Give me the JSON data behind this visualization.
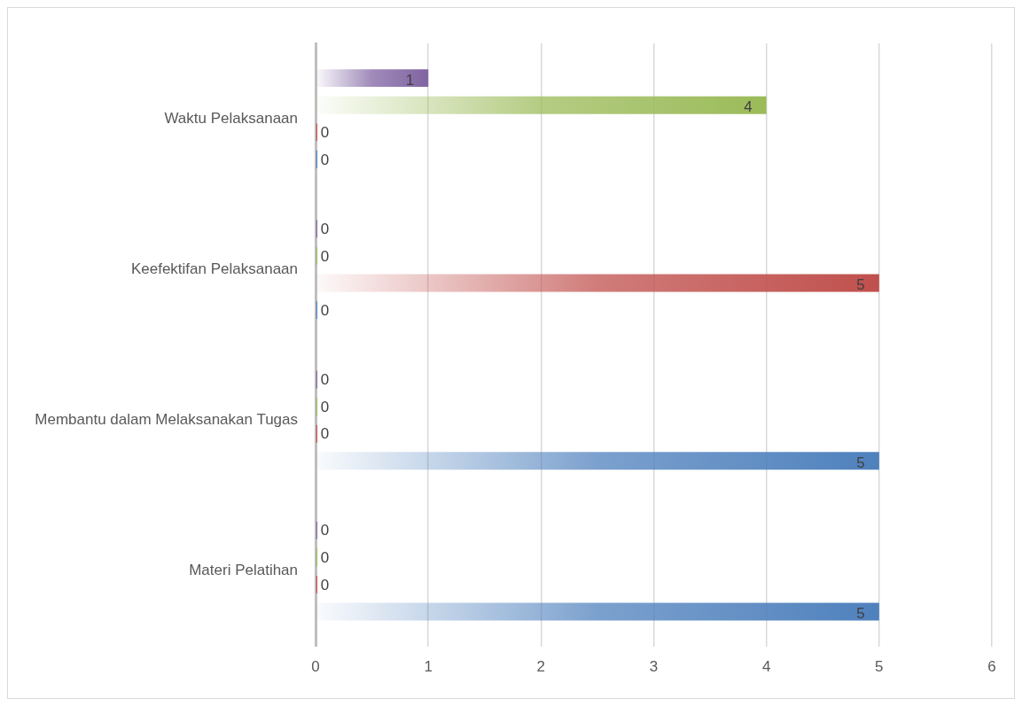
{
  "chart_data": {
    "type": "bar",
    "orientation": "horizontal",
    "categories": [
      "Waktu Pelaksanaan",
      "Keefektifan Pelaksanaan",
      "Membantu dalam Melaksanakan Tugas",
      "Materi Pelatihan"
    ],
    "series": [
      {
        "color": "#8064a2",
        "values": [
          1,
          0,
          0,
          0
        ]
      },
      {
        "color": "#9bbb59",
        "values": [
          4,
          0,
          0,
          0
        ]
      },
      {
        "color": "#c0504d",
        "values": [
          0,
          5,
          0,
          0
        ]
      },
      {
        "color": "#4f81bd",
        "values": [
          0,
          0,
          5,
          5
        ]
      }
    ],
    "xlim": [
      0,
      6
    ],
    "xticks": [
      0,
      1,
      2,
      3,
      4,
      5,
      6
    ],
    "grid": "x",
    "legend": false,
    "data_labels": true
  }
}
